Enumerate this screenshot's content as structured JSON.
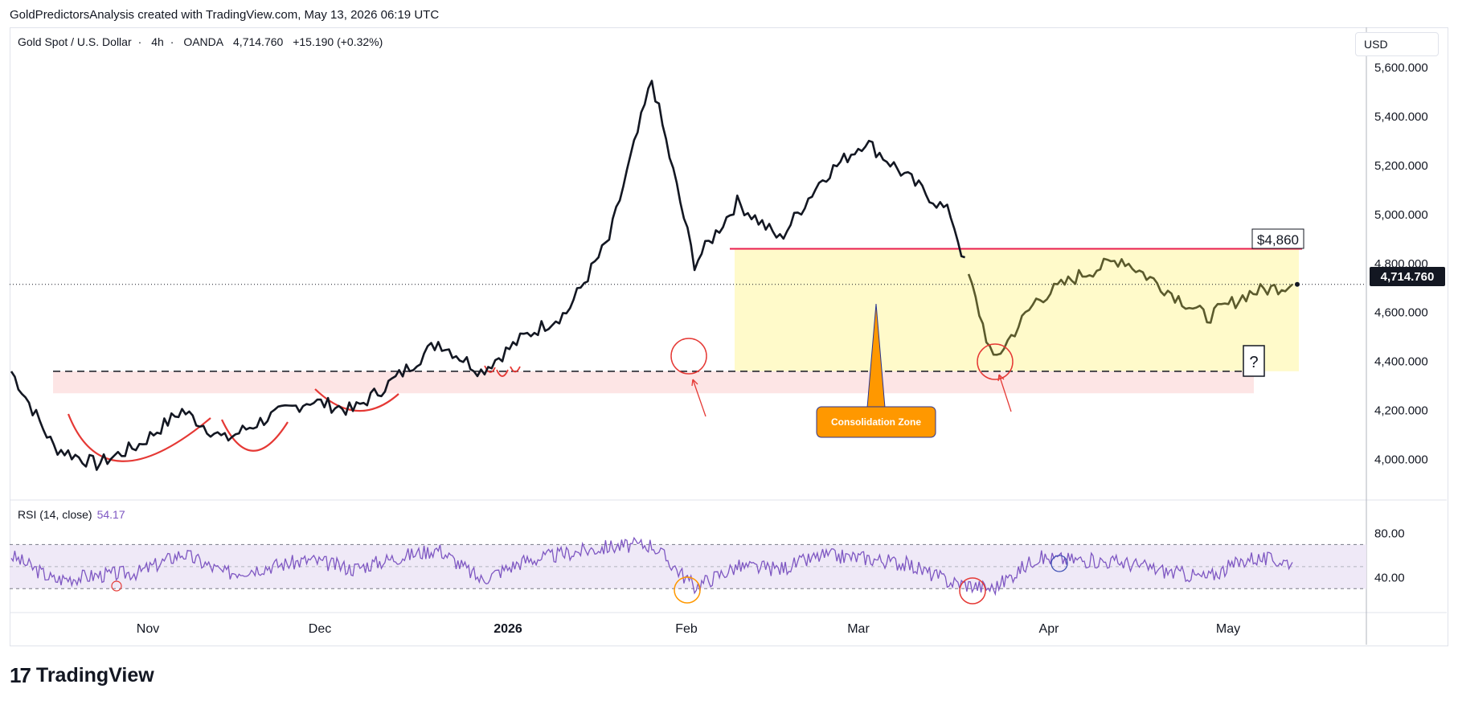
{
  "header": {
    "attribution": "GoldPredictorsAnalysis created with TradingView.com, May 13, 2026 06:19 UTC"
  },
  "legend": {
    "symbol": "Gold Spot / U.S. Dollar",
    "interval": "4h",
    "source": "OANDA",
    "price": "4,714.760",
    "change": "+15.190 (+0.32%)"
  },
  "currency": "USD",
  "price_axis": {
    "labels": [
      "5,600.000",
      "5,400.000",
      "5,200.000",
      "5,000.000",
      "4,800.000",
      "4,600.000",
      "4,400.000",
      "4,200.000",
      "4,000.000"
    ],
    "last_price": "4,714.760"
  },
  "rsi": {
    "label": "RSI (14, close)",
    "value": "54.17",
    "axis_labels": [
      "80.00",
      "40.00"
    ]
  },
  "time_axis": [
    "Nov",
    "Dec",
    "2026",
    "Feb",
    "Mar",
    "Apr",
    "May"
  ],
  "annotations": {
    "resistance_label": "$4,860",
    "zone_label": "Consolidation Zone",
    "question_mark": "?"
  },
  "brand": {
    "name": "TradingView"
  },
  "colors": {
    "price_line": "#131722",
    "price_line_in_zone": "#5b5a2c",
    "resistance": "#e91e4f",
    "support_band": "#fde0e0",
    "consolidation_zone": "#fff9c4",
    "zone_label_bg": "#ff9800",
    "rsi_line": "#7e57c2",
    "rsi_band": "#ede7f6"
  },
  "chart_data": {
    "type": "line",
    "title": "Gold Spot / U.S. Dollar · 4h · OANDA",
    "x": [
      "2025-10-13",
      "2025-10-20",
      "2025-10-27",
      "2025-11-03",
      "2025-11-10",
      "2025-11-17",
      "2025-11-24",
      "2025-12-01",
      "2025-12-08",
      "2025-12-15",
      "2025-12-22",
      "2025-12-29",
      "2026-01-05",
      "2026-01-12",
      "2026-01-19",
      "2026-01-26",
      "2026-02-02",
      "2026-02-09",
      "2026-02-16",
      "2026-02-23",
      "2026-03-02",
      "2026-03-09",
      "2026-03-16",
      "2026-03-23",
      "2026-03-30",
      "2026-04-06",
      "2026-04-13",
      "2026-04-20",
      "2026-04-27",
      "2026-05-04",
      "2026-05-11"
    ],
    "series": [
      {
        "values": [
          4360,
          4050,
          3980,
          4060,
          4200,
          4080,
          4170,
          4240,
          4200,
          4330,
          4480,
          4360,
          4500,
          4600,
          4900,
          5550,
          4800,
          5050,
          4900,
          5150,
          5300,
          5150,
          5000,
          4400,
          4650,
          4750,
          4820,
          4700,
          4580,
          4680,
          4715
        ]
      }
    ],
    "ylim": [
      3880,
      5640
    ],
    "reference_levels": [
      {
        "name": "resistance",
        "value": 4860
      },
      {
        "name": "support",
        "value": 4360
      }
    ],
    "rsi": {
      "values": [
        60,
        38,
        42,
        45,
        62,
        44,
        50,
        56,
        48,
        58,
        66,
        38,
        55,
        62,
        68,
        70,
        32,
        50,
        48,
        60,
        58,
        52,
        36,
        30,
        58,
        56,
        54,
        46,
        40,
        58,
        54
      ],
      "levels": [
        70,
        30
      ],
      "ylim": [
        20,
        90
      ]
    },
    "grid": false
  }
}
